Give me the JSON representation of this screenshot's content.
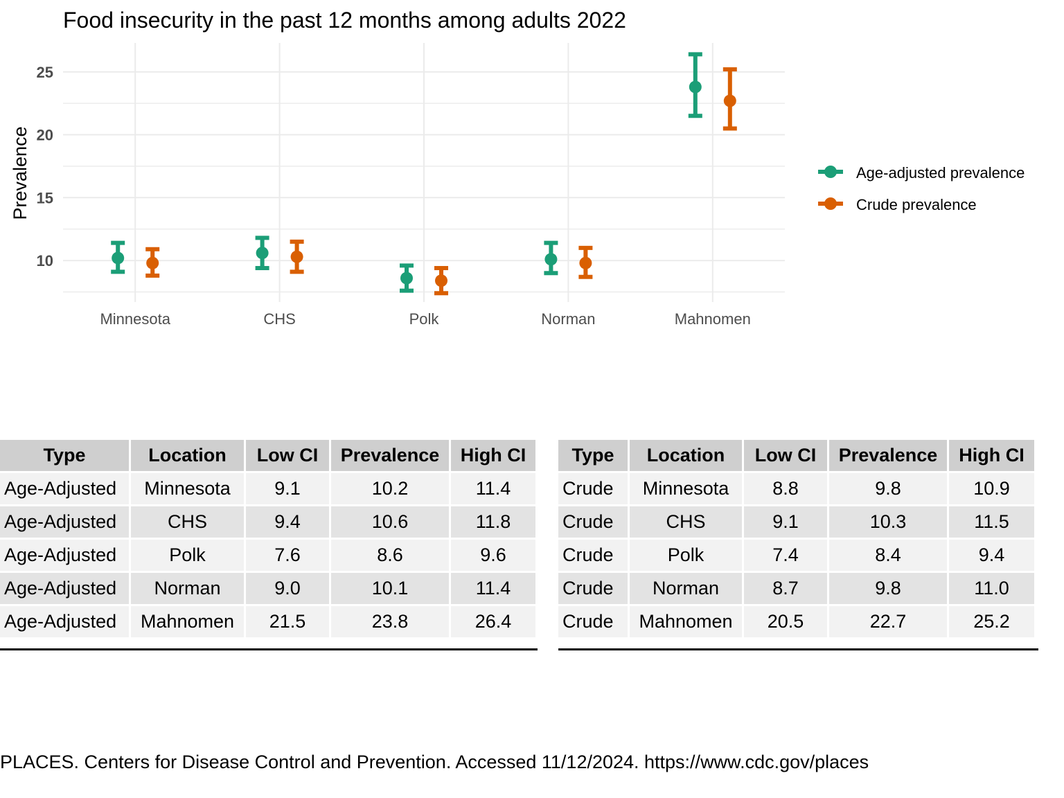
{
  "chart_data": {
    "type": "errorbar",
    "title": "Food insecurity in the past 12 months among adults 2022",
    "ylabel": "Prevalence",
    "xlabel": "",
    "categories": [
      "Minnesota",
      "CHS",
      "Polk",
      "Norman",
      "Mahnomen"
    ],
    "yticks": [
      10,
      15,
      20,
      25
    ],
    "ylim": [
      6.7,
      27.3
    ],
    "grid": true,
    "legend_position": "right",
    "series": [
      {
        "name": "Age-adjusted prevalence",
        "color": "#1b9e77",
        "values": [
          10.2,
          10.6,
          8.6,
          10.1,
          23.8
        ],
        "low": [
          9.1,
          9.4,
          7.6,
          9.0,
          21.5
        ],
        "high": [
          11.4,
          11.8,
          9.6,
          11.4,
          26.4
        ]
      },
      {
        "name": "Crude prevalence",
        "color": "#d95f02",
        "values": [
          9.8,
          10.3,
          8.4,
          9.8,
          22.7
        ],
        "low": [
          8.8,
          9.1,
          7.4,
          8.7,
          20.5
        ],
        "high": [
          10.9,
          11.5,
          9.4,
          11.0,
          25.2
        ]
      }
    ]
  },
  "tables": [
    {
      "headers": [
        "Type",
        "Location",
        "Low CI",
        "Prevalence",
        "High CI"
      ],
      "rows": [
        [
          "Age-Adjusted",
          "Minnesota",
          "9.1",
          "10.2",
          "11.4"
        ],
        [
          "Age-Adjusted",
          "CHS",
          "9.4",
          "10.6",
          "11.8"
        ],
        [
          "Age-Adjusted",
          "Polk",
          "7.6",
          "8.6",
          "9.6"
        ],
        [
          "Age-Adjusted",
          "Norman",
          "9.0",
          "10.1",
          "11.4"
        ],
        [
          "Age-Adjusted",
          "Mahnomen",
          "21.5",
          "23.8",
          "26.4"
        ]
      ]
    },
    {
      "headers": [
        "Type",
        "Location",
        "Low CI",
        "Prevalence",
        "High CI"
      ],
      "rows": [
        [
          "Crude",
          "Minnesota",
          "8.8",
          "9.8",
          "10.9"
        ],
        [
          "Crude",
          "CHS",
          "9.1",
          "10.3",
          "11.5"
        ],
        [
          "Crude",
          "Polk",
          "7.4",
          "8.4",
          "9.4"
        ],
        [
          "Crude",
          "Norman",
          "8.7",
          "9.8",
          "11.0"
        ],
        [
          "Crude",
          "Mahnomen",
          "20.5",
          "22.7",
          "25.2"
        ]
      ]
    }
  ],
  "footer": "PLACES. Centers for Disease Control and Prevention. Accessed 11/12/2024. https://www.cdc.gov/places"
}
